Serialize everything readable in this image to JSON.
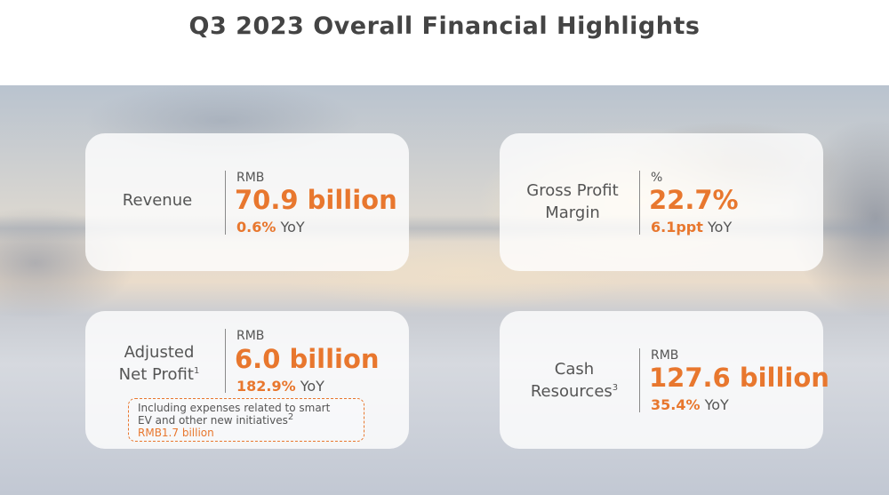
{
  "title": "Q3 2023 Overall Financial Highlights",
  "cards": {
    "revenue": {
      "label": "Revenue",
      "unit": "RMB",
      "value": "70.9 billion",
      "yoy_num": "0.6%",
      "yoy_text": "YoY"
    },
    "gross_margin": {
      "label_line1": "Gross Profit",
      "label_line2": "Margin",
      "unit": "%",
      "value": "22.7%",
      "yoy_num": "6.1ppt",
      "yoy_text": "YoY"
    },
    "adjusted_net_profit": {
      "label_line1": "Adjusted",
      "label_line2": "Net Profit",
      "sup": "1",
      "unit": "RMB",
      "value": "6.0 billion",
      "yoy_num": "182.9%",
      "yoy_text": "YoY",
      "note_line1": "Including expenses related to smart",
      "note_line2": "EV and other new initiatives",
      "note_sup": "2",
      "note_amount": "RMB1.7 billion"
    },
    "cash_resources": {
      "label_line1": "Cash",
      "label_line2": "Resources",
      "sup": "3",
      "unit": "RMB",
      "value": "127.6 billion",
      "yoy_num": "35.4%",
      "yoy_text": "YoY"
    }
  },
  "colors": {
    "accent": "#e8772e",
    "text": "#555555"
  }
}
